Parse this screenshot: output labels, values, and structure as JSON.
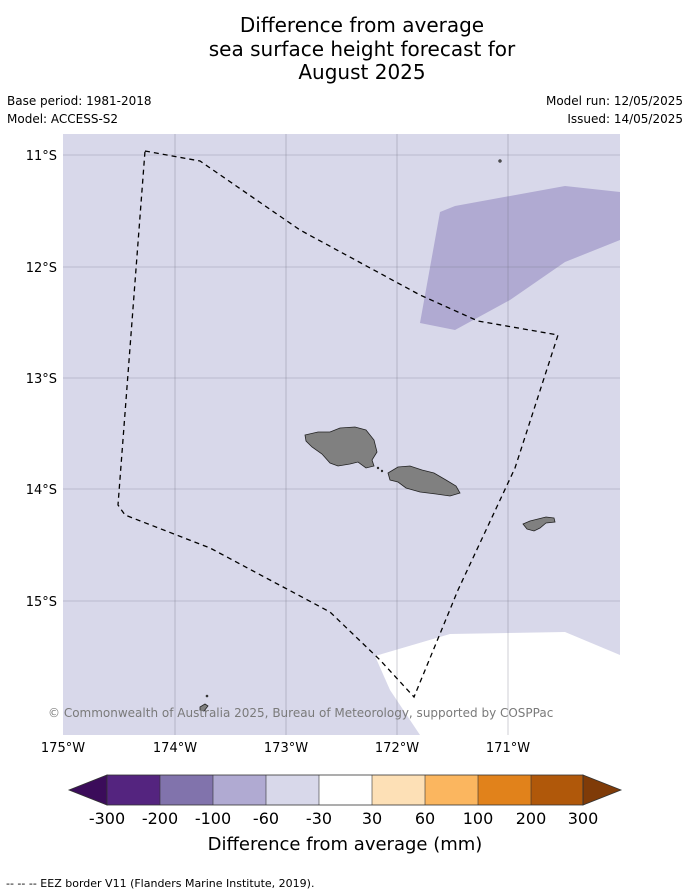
{
  "title": {
    "line1": "Difference from average",
    "line2": "sea surface height forecast for",
    "line3": "August 2025"
  },
  "meta": {
    "base_period": "Base period: 1981-2018",
    "model": "Model: ACCESS-S2",
    "model_run": "Model run: 12/05/2025",
    "issued": "Issued: 14/05/2025"
  },
  "map": {
    "lat_labels": [
      "11°S",
      "12°S",
      "13°S",
      "14°S",
      "15°S"
    ],
    "lon_labels": [
      "175°W",
      "174°W",
      "173°W",
      "172°W",
      "171°W"
    ],
    "copyright": "© Commonwealth of Australia 2025, Bureau of Meteorology, supported by COSPPac",
    "colors": {
      "band_minus60_minus30": "#d8d8ea",
      "band_minus100_minus60": "#b0aad2",
      "land": "#808080",
      "gridline": "#6e6e80"
    }
  },
  "colorbar": {
    "title": "Difference from average (mm)",
    "ticks": [
      "-300",
      "-200",
      "-100",
      "-60",
      "-30",
      "30",
      "60",
      "100",
      "200",
      "300"
    ],
    "colors": [
      "#3b0c5a",
      "#54247f",
      "#8173ac",
      "#b0aad2",
      "#d8d8ea",
      "#ffffff",
      "#fde0b6",
      "#fbb65f",
      "#e1821b",
      "#b0580a",
      "#7f3b08"
    ]
  },
  "footer": {
    "legend_text": "--  --  -- EEZ border V11 (Flanders Marine Institute, 2019)."
  }
}
